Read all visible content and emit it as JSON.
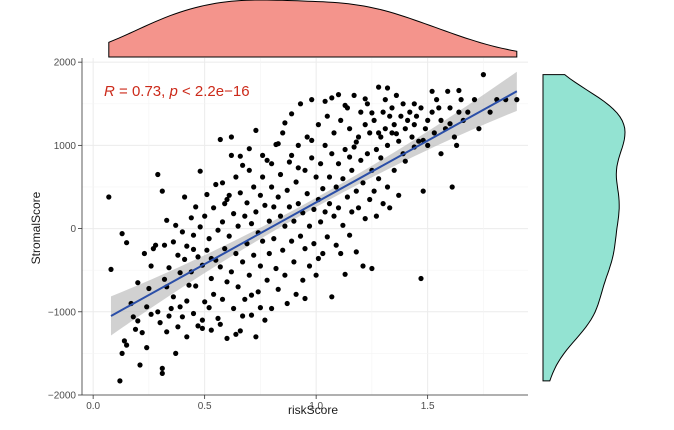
{
  "chart_data": {
    "type": "scatter",
    "xlabel": "riskScore",
    "ylabel": "StromalScore",
    "xlim": [
      -0.05,
      1.95
    ],
    "ylim": [
      -2000,
      2050
    ],
    "xticks": [
      0.0,
      0.5,
      1.0,
      1.5
    ],
    "xtick_labels": [
      "0.0",
      "0.5",
      "1.0",
      "1.5"
    ],
    "yticks": [
      -2000,
      -1000,
      0,
      1000,
      2000
    ],
    "ytick_labels": [
      "-2000",
      "-1000",
      "0",
      "1000",
      "2000"
    ],
    "grid": true,
    "annotation": {
      "prefix": "R",
      "mid": " = 0.73, ",
      "p_letter": "p",
      "suffix": " < 2.2e−16"
    },
    "regression": {
      "x0": 0.08,
      "y0": -1050,
      "x1": 1.9,
      "y1": 1650,
      "color": "#2b4fa8",
      "band_color": "#bdbdbd"
    },
    "top_density_color": "#f4948c",
    "right_density_color": "#93e3d2",
    "point_color": "#000000",
    "points": [
      [
        0.07,
        380
      ],
      [
        0.08,
        -490
      ],
      [
        0.12,
        -1830
      ],
      [
        0.13,
        -60
      ],
      [
        0.13,
        -1500
      ],
      [
        0.15,
        -170
      ],
      [
        0.15,
        -1400
      ],
      [
        0.17,
        -900
      ],
      [
        0.18,
        -1060
      ],
      [
        0.19,
        -1210
      ],
      [
        0.2,
        -1110
      ],
      [
        0.21,
        -1640
      ],
      [
        0.22,
        -1250
      ],
      [
        0.23,
        -300
      ],
      [
        0.24,
        -1430
      ],
      [
        0.24,
        -940
      ],
      [
        0.25,
        -720
      ],
      [
        0.26,
        -1030
      ],
      [
        0.27,
        -240
      ],
      [
        0.28,
        -200
      ],
      [
        0.29,
        -1000
      ],
      [
        0.29,
        650
      ],
      [
        0.3,
        -1130
      ],
      [
        0.31,
        450
      ],
      [
        0.31,
        -1680
      ],
      [
        0.31,
        -1740
      ],
      [
        0.32,
        -200
      ],
      [
        0.32,
        -610
      ],
      [
        0.33,
        100
      ],
      [
        0.33,
        -1240
      ],
      [
        0.34,
        -1050
      ],
      [
        0.34,
        -470
      ],
      [
        0.35,
        -960
      ],
      [
        0.36,
        -160
      ],
      [
        0.36,
        -820
      ],
      [
        0.37,
        40
      ],
      [
        0.38,
        -320
      ],
      [
        0.38,
        -1180
      ],
      [
        0.39,
        -530
      ],
      [
        0.39,
        -940
      ],
      [
        0.4,
        -40
      ],
      [
        0.4,
        -1060
      ],
      [
        0.41,
        380
      ],
      [
        0.41,
        -370
      ],
      [
        0.42,
        -210
      ],
      [
        0.42,
        -870
      ],
      [
        0.43,
        -680
      ],
      [
        0.44,
        130
      ],
      [
        0.44,
        -520
      ],
      [
        0.45,
        -80
      ],
      [
        0.45,
        -1020
      ],
      [
        0.46,
        260
      ],
      [
        0.46,
        -690
      ],
      [
        0.47,
        -1170
      ],
      [
        0.47,
        -340
      ],
      [
        0.48,
        690
      ],
      [
        0.48,
        20
      ],
      [
        0.49,
        -440
      ],
      [
        0.49,
        -1100
      ],
      [
        0.5,
        150
      ],
      [
        0.5,
        -880
      ],
      [
        0.51,
        -260
      ],
      [
        0.51,
        410
      ],
      [
        0.52,
        -950
      ],
      [
        0.52,
        -120
      ],
      [
        0.53,
        -600
      ],
      [
        0.53,
        -1220
      ],
      [
        0.54,
        250
      ],
      [
        0.54,
        -790
      ],
      [
        0.55,
        -380
      ],
      [
        0.55,
        530
      ],
      [
        0.56,
        -20
      ],
      [
        0.56,
        -1080
      ],
      [
        0.57,
        -460
      ],
      [
        0.57,
        1070
      ],
      [
        0.58,
        80
      ],
      [
        0.58,
        -850
      ],
      [
        0.59,
        -240
      ],
      [
        0.59,
        300
      ],
      [
        0.6,
        -1320
      ],
      [
        0.6,
        -640
      ],
      [
        0.61,
        400
      ],
      [
        0.61,
        -90
      ],
      [
        0.62,
        880
      ],
      [
        0.62,
        -520
      ],
      [
        0.63,
        180
      ],
      [
        0.63,
        -960
      ],
      [
        0.64,
        -300
      ],
      [
        0.64,
        620
      ],
      [
        0.65,
        -700
      ],
      [
        0.65,
        30
      ],
      [
        0.66,
        -1230
      ],
      [
        0.66,
        430
      ],
      [
        0.67,
        -400
      ],
      [
        0.67,
        760
      ],
      [
        0.68,
        150
      ],
      [
        0.68,
        -850
      ],
      [
        0.69,
        -180
      ],
      [
        0.69,
        310
      ],
      [
        0.7,
        -560
      ],
      [
        0.7,
        960
      ],
      [
        0.71,
        60
      ],
      [
        0.71,
        -1040
      ],
      [
        0.72,
        500
      ],
      [
        0.72,
        -320
      ],
      [
        0.73,
        200
      ],
      [
        0.73,
        1180
      ],
      [
        0.74,
        -760
      ],
      [
        0.74,
        -50
      ],
      [
        0.75,
        400
      ],
      [
        0.75,
        -450
      ],
      [
        0.76,
        620
      ],
      [
        0.76,
        -150
      ],
      [
        0.77,
        -1100
      ],
      [
        0.77,
        280
      ],
      [
        0.78,
        820
      ],
      [
        0.78,
        -620
      ],
      [
        0.79,
        90
      ],
      [
        0.79,
        -300
      ],
      [
        0.8,
        500
      ],
      [
        0.8,
        -960
      ],
      [
        0.81,
        260
      ],
      [
        0.81,
        -120
      ],
      [
        0.82,
        1010
      ],
      [
        0.82,
        -480
      ],
      [
        0.83,
        380
      ],
      [
        0.83,
        -730
      ],
      [
        0.84,
        150
      ],
      [
        0.84,
        650
      ],
      [
        0.85,
        -260
      ],
      [
        0.85,
        1150
      ],
      [
        0.86,
        30
      ],
      [
        0.86,
        -560
      ],
      [
        0.87,
        460
      ],
      [
        0.87,
        -900
      ],
      [
        0.88,
        260
      ],
      [
        0.88,
        800
      ],
      [
        0.89,
        -150
      ],
      [
        0.89,
        1380
      ],
      [
        0.9,
        90
      ],
      [
        0.9,
        -400
      ],
      [
        0.91,
        560
      ],
      [
        0.91,
        -790
      ],
      [
        0.92,
        300
      ],
      [
        0.92,
        1000
      ],
      [
        0.93,
        -90
      ],
      [
        0.93,
        1500
      ],
      [
        0.94,
        190
      ],
      [
        0.94,
        -620
      ],
      [
        0.95,
        700
      ],
      [
        0.95,
        -240
      ],
      [
        0.96,
        420
      ],
      [
        0.96,
        1100
      ],
      [
        0.97,
        30
      ],
      [
        0.97,
        -450
      ],
      [
        0.98,
        850
      ],
      [
        0.98,
        1550
      ],
      [
        0.99,
        230
      ],
      [
        0.99,
        -180
      ],
      [
        1.0,
        620
      ],
      [
        1.0,
        -560
      ],
      [
        1.01,
        350
      ],
      [
        1.01,
        1250
      ],
      [
        1.02,
        80
      ],
      [
        1.02,
        780
      ],
      [
        1.03,
        -300
      ],
      [
        1.03,
        480
      ],
      [
        1.04,
        1000
      ],
      [
        1.04,
        200
      ],
      [
        1.05,
        -100
      ],
      [
        1.05,
        1350
      ],
      [
        1.06,
        620
      ],
      [
        1.06,
        300
      ],
      [
        1.07,
        900
      ],
      [
        1.07,
        -820
      ],
      [
        1.08,
        150
      ],
      [
        1.08,
        1150
      ],
      [
        1.09,
        500
      ],
      [
        1.09,
        -200
      ],
      [
        1.1,
        780
      ],
      [
        1.1,
        250
      ],
      [
        1.11,
        1300
      ],
      [
        1.11,
        -300
      ],
      [
        1.12,
        600
      ],
      [
        1.12,
        40
      ],
      [
        1.13,
        950
      ],
      [
        1.13,
        -550
      ],
      [
        1.14,
        1450
      ],
      [
        1.14,
        380
      ],
      [
        1.15,
        -80
      ],
      [
        1.15,
        1200
      ],
      [
        1.16,
        700
      ],
      [
        1.16,
        200
      ],
      [
        1.17,
        980
      ],
      [
        1.17,
        1600
      ],
      [
        1.18,
        450
      ],
      [
        1.18,
        -280
      ],
      [
        1.19,
        1100
      ],
      [
        1.19,
        250
      ],
      [
        1.2,
        820
      ],
      [
        1.2,
        1400
      ],
      [
        1.21,
        -450
      ],
      [
        1.21,
        550
      ],
      [
        1.22,
        1250
      ],
      [
        1.22,
        120
      ],
      [
        1.23,
        900
      ],
      [
        1.23,
        1500
      ],
      [
        1.24,
        350
      ],
      [
        1.24,
        1150
      ],
      [
        1.25,
        -480
      ],
      [
        1.25,
        700
      ],
      [
        1.26,
        1300
      ],
      [
        1.26,
        450
      ],
      [
        1.27,
        950
      ],
      [
        1.27,
        150
      ],
      [
        1.28,
        1700
      ],
      [
        1.28,
        600
      ],
      [
        1.29,
        1100
      ],
      [
        1.29,
        850
      ],
      [
        1.3,
        1400
      ],
      [
        1.3,
        300
      ],
      [
        1.31,
        1200
      ],
      [
        1.31,
        1550
      ],
      [
        1.32,
        500
      ],
      [
        1.32,
        1000
      ],
      [
        1.33,
        1350
      ],
      [
        1.33,
        250
      ],
      [
        1.34,
        1150
      ],
      [
        1.34,
        1450
      ],
      [
        1.35,
        700
      ],
      [
        1.35,
        1250
      ],
      [
        1.36,
        1600
      ],
      [
        1.37,
        400
      ],
      [
        1.37,
        1050
      ],
      [
        1.38,
        1350
      ],
      [
        1.39,
        900
      ],
      [
        1.39,
        1500
      ],
      [
        1.4,
        1200
      ],
      [
        1.41,
        1300
      ],
      [
        1.42,
        1400
      ],
      [
        1.43,
        1100
      ],
      [
        1.44,
        1250
      ],
      [
        1.44,
        1500
      ],
      [
        1.45,
        1350
      ],
      [
        1.46,
        1050
      ],
      [
        1.47,
        1450
      ],
      [
        1.47,
        -600
      ],
      [
        1.48,
        450
      ],
      [
        1.49,
        1200
      ],
      [
        1.5,
        1300
      ],
      [
        1.5,
        1000
      ],
      [
        1.52,
        1400
      ],
      [
        1.53,
        1150
      ],
      [
        1.54,
        1550
      ],
      [
        1.55,
        1450
      ],
      [
        1.56,
        1300
      ],
      [
        1.58,
        1200
      ],
      [
        1.59,
        1650
      ],
      [
        1.6,
        1450
      ],
      [
        1.61,
        500
      ],
      [
        1.62,
        1100
      ],
      [
        1.63,
        1000
      ],
      [
        1.64,
        1400
      ],
      [
        1.65,
        1550
      ],
      [
        1.66,
        1300
      ],
      [
        1.68,
        1400
      ],
      [
        1.71,
        1550
      ],
      [
        1.73,
        1200
      ],
      [
        1.75,
        1850
      ],
      [
        1.78,
        1400
      ],
      [
        1.81,
        1550
      ],
      [
        1.85,
        1550
      ],
      [
        1.9,
        1550
      ],
      [
        0.58,
        550
      ],
      [
        0.62,
        1100
      ],
      [
        0.66,
        870
      ],
      [
        0.7,
        700
      ],
      [
        0.73,
        -1300
      ],
      [
        0.76,
        880
      ],
      [
        0.8,
        780
      ],
      [
        0.83,
        1020
      ],
      [
        0.86,
        1270
      ],
      [
        0.89,
        880
      ],
      [
        0.92,
        730
      ],
      [
        0.95,
        -840
      ],
      [
        0.98,
        1060
      ],
      [
        1.01,
        -360
      ],
      [
        1.04,
        1530
      ],
      [
        1.07,
        1570
      ],
      [
        1.1,
        1610
      ],
      [
        1.13,
        1480
      ],
      [
        1.15,
        860
      ],
      [
        1.18,
        1040
      ],
      [
        1.22,
        1560
      ],
      [
        1.25,
        1390
      ],
      [
        1.28,
        1150
      ],
      [
        1.32,
        1690
      ],
      [
        1.36,
        1140
      ],
      [
        1.4,
        810
      ],
      [
        1.44,
        980
      ],
      [
        1.48,
        1060
      ],
      [
        1.52,
        1650
      ],
      [
        1.56,
        900
      ],
      [
        1.6,
        1260
      ],
      [
        1.64,
        1660
      ],
      [
        0.14,
        -1350
      ],
      [
        0.2,
        -650
      ],
      [
        0.26,
        -450
      ],
      [
        0.33,
        -700
      ],
      [
        0.37,
        -1500
      ],
      [
        0.42,
        -1300
      ],
      [
        0.45,
        -250
      ],
      [
        0.49,
        -1200
      ],
      [
        0.53,
        -360
      ],
      [
        0.57,
        -1150
      ],
      [
        0.6,
        350
      ],
      [
        0.64,
        -1270
      ],
      [
        0.67,
        -1050
      ],
      [
        0.71,
        -800
      ],
      [
        0.75,
        -950
      ]
    ]
  }
}
